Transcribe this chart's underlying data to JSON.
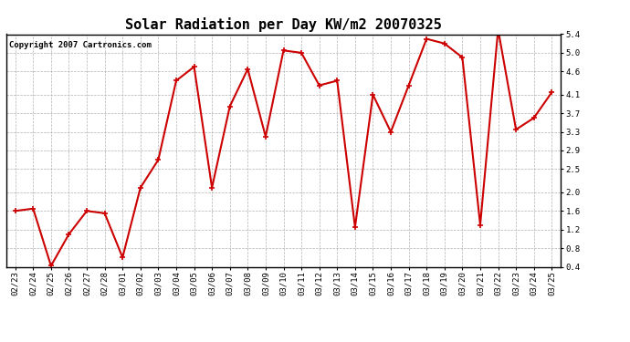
{
  "title": "Solar Radiation per Day KW/m2 20070325",
  "copyright": "Copyright 2007 Cartronics.com",
  "dates": [
    "02/23",
    "02/24",
    "02/25",
    "02/26",
    "02/27",
    "02/28",
    "03/01",
    "03/02",
    "03/03",
    "03/04",
    "03/05",
    "03/06",
    "03/07",
    "03/08",
    "03/09",
    "03/10",
    "03/11",
    "03/12",
    "03/13",
    "03/14",
    "03/15",
    "03/16",
    "03/17",
    "03/18",
    "03/19",
    "03/20",
    "03/21",
    "03/22",
    "03/23",
    "03/24",
    "03/25"
  ],
  "values": [
    1.6,
    1.65,
    0.42,
    1.1,
    1.6,
    1.55,
    0.6,
    2.1,
    2.7,
    4.4,
    4.7,
    2.1,
    3.85,
    4.65,
    3.2,
    5.05,
    5.0,
    4.3,
    4.4,
    1.25,
    4.1,
    3.3,
    4.3,
    5.3,
    5.2,
    4.9,
    1.3,
    5.5,
    3.35,
    3.6,
    4.15
  ],
  "line_color": "#cc0000",
  "marker": "+",
  "marker_size": 4,
  "background_color": "#ffffff",
  "grid_color": "#aaaaaa",
  "ylim": [
    0.4,
    5.4
  ],
  "yticks": [
    0.4,
    0.8,
    1.2,
    1.6,
    2.0,
    2.5,
    2.9,
    3.3,
    3.7,
    4.1,
    4.6,
    5.0,
    5.4
  ],
  "title_fontsize": 11,
  "copyright_fontsize": 6.5,
  "tick_fontsize": 6.5,
  "line_width": 1.5
}
